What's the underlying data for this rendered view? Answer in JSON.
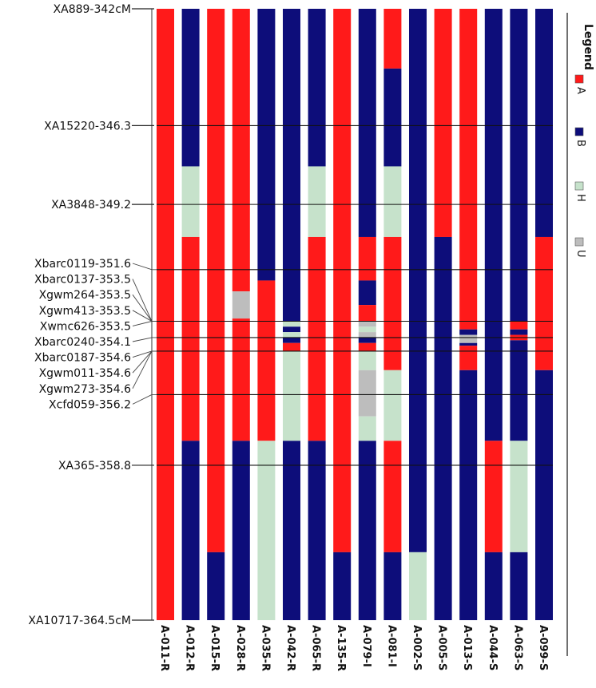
{
  "markers": [
    {
      "label": "XA889-342cM",
      "cM": 342.0,
      "ref": true
    },
    {
      "label": "XA15220-346.3",
      "cM": 346.3,
      "ref": true
    },
    {
      "label": "XA3848-349.2",
      "cM": 349.2,
      "ref": true
    },
    {
      "label": "Xbarc0119-351.6",
      "cM": 351.6
    },
    {
      "label": "Xbarc0137-353.5",
      "cM": 353.5
    },
    {
      "label": "Xgwm264-353.5",
      "cM": 353.5
    },
    {
      "label": "Xgwm413-353.5",
      "cM": 353.5
    },
    {
      "label": "Xwmc626-353.5",
      "cM": 353.5
    },
    {
      "label": "Xbarc0240-354.1",
      "cM": 354.1
    },
    {
      "label": "Xbarc0187-354.6",
      "cM": 354.6
    },
    {
      "label": "Xgwm011-354.6",
      "cM": 354.6
    },
    {
      "label": "Xgwm273-354.6",
      "cM": 354.6
    },
    {
      "label": "Xcfd059-356.2",
      "cM": 356.2
    },
    {
      "label": "XA365-358.8",
      "cM": 358.8,
      "ref": true
    },
    {
      "label": "XA10717-364.5cM",
      "cM": 364.5,
      "ref": true
    }
  ],
  "axis": {
    "min_cM": 342.0,
    "max_cM": 364.5
  },
  "legend": {
    "title": "Legend",
    "items": [
      {
        "code": "A",
        "label": "A",
        "color": "#ff1a1a"
      },
      {
        "code": "B",
        "label": "B",
        "color": "#0d0d7a"
      },
      {
        "code": "H",
        "label": "H",
        "color": "#c6e2cb"
      },
      {
        "code": "U",
        "label": "U",
        "color": "#bdbdbd"
      }
    ]
  },
  "colors": {
    "A": "#ff1a1a",
    "B": "#0d0d7a",
    "H": "#c6e2cb",
    "U": "#bdbdbd",
    "line": "#111111"
  },
  "lines": [
    {
      "name": "A-011-R",
      "segments": [
        [
          342.0,
          364.5,
          "A"
        ]
      ]
    },
    {
      "name": "A-012-R",
      "segments": [
        [
          342.0,
          347.8,
          "B"
        ],
        [
          347.8,
          350.4,
          "H"
        ],
        [
          350.4,
          357.9,
          "A"
        ],
        [
          357.9,
          364.5,
          "B"
        ]
      ]
    },
    {
      "name": "A-015-R",
      "segments": [
        [
          342.0,
          362.0,
          "A"
        ],
        [
          362.0,
          364.5,
          "B"
        ]
      ]
    },
    {
      "name": "A-028-R",
      "segments": [
        [
          342.0,
          352.4,
          "A"
        ],
        [
          352.4,
          353.4,
          "U"
        ],
        [
          353.4,
          357.9,
          "A"
        ],
        [
          357.9,
          364.5,
          "B"
        ]
      ]
    },
    {
      "name": "A-035-R",
      "segments": [
        [
          342.0,
          352.0,
          "B"
        ],
        [
          352.0,
          357.9,
          "A"
        ],
        [
          357.9,
          364.5,
          "H"
        ]
      ]
    },
    {
      "name": "A-042-R",
      "segments": [
        [
          342.0,
          353.5,
          "B"
        ],
        [
          353.5,
          353.7,
          "H"
        ],
        [
          353.7,
          353.9,
          "B"
        ],
        [
          353.9,
          354.1,
          "H"
        ],
        [
          354.1,
          354.3,
          "B"
        ],
        [
          354.3,
          354.6,
          "A"
        ],
        [
          354.6,
          357.9,
          "H"
        ],
        [
          357.9,
          364.5,
          "B"
        ]
      ]
    },
    {
      "name": "A-065-R",
      "segments": [
        [
          342.0,
          347.8,
          "B"
        ],
        [
          347.8,
          350.4,
          "H"
        ],
        [
          350.4,
          357.9,
          "A"
        ],
        [
          357.9,
          364.5,
          "B"
        ]
      ]
    },
    {
      "name": "A-135-R",
      "segments": [
        [
          342.0,
          362.0,
          "A"
        ],
        [
          362.0,
          364.5,
          "B"
        ]
      ]
    },
    {
      "name": "A-079-I",
      "segments": [
        [
          342.0,
          350.4,
          "B"
        ],
        [
          350.4,
          352.0,
          "A"
        ],
        [
          352.0,
          352.9,
          "B"
        ],
        [
          352.9,
          353.5,
          "A"
        ],
        [
          353.5,
          353.7,
          "U"
        ],
        [
          353.7,
          353.9,
          "H"
        ],
        [
          353.9,
          354.1,
          "U"
        ],
        [
          354.1,
          354.3,
          "B"
        ],
        [
          354.3,
          354.6,
          "A"
        ],
        [
          354.6,
          355.3,
          "H"
        ],
        [
          355.3,
          357.0,
          "U"
        ],
        [
          357.0,
          357.9,
          "H"
        ],
        [
          357.9,
          364.5,
          "B"
        ]
      ]
    },
    {
      "name": "A-081-I",
      "segments": [
        [
          342.0,
          344.2,
          "A"
        ],
        [
          344.2,
          347.8,
          "B"
        ],
        [
          347.8,
          350.4,
          "H"
        ],
        [
          350.4,
          355.3,
          "A"
        ],
        [
          355.3,
          357.9,
          "H"
        ],
        [
          357.9,
          362.0,
          "A"
        ],
        [
          362.0,
          364.5,
          "B"
        ]
      ]
    },
    {
      "name": "A-002-S",
      "segments": [
        [
          342.0,
          362.0,
          "B"
        ],
        [
          362.0,
          364.5,
          "H"
        ]
      ]
    },
    {
      "name": "A-005-S",
      "segments": [
        [
          342.0,
          350.4,
          "A"
        ],
        [
          350.4,
          364.5,
          "B"
        ]
      ]
    },
    {
      "name": "A-013-S",
      "segments": [
        [
          342.0,
          353.8,
          "A"
        ],
        [
          353.8,
          354.0,
          "B"
        ],
        [
          354.0,
          354.3,
          "U"
        ],
        [
          354.3,
          354.4,
          "B"
        ],
        [
          354.4,
          355.3,
          "A"
        ],
        [
          355.3,
          364.5,
          "B"
        ]
      ]
    },
    {
      "name": "A-044-S",
      "segments": [
        [
          342.0,
          357.9,
          "B"
        ],
        [
          357.9,
          362.0,
          "A"
        ],
        [
          362.0,
          364.5,
          "B"
        ]
      ]
    },
    {
      "name": "A-063-S",
      "segments": [
        [
          342.0,
          353.5,
          "B"
        ],
        [
          353.5,
          353.8,
          "A"
        ],
        [
          353.8,
          354.0,
          "B"
        ],
        [
          354.0,
          354.2,
          "A"
        ],
        [
          354.2,
          357.9,
          "B"
        ],
        [
          357.9,
          362.0,
          "H"
        ],
        [
          362.0,
          364.5,
          "B"
        ]
      ]
    },
    {
      "name": "A-099-S",
      "segments": [
        [
          342.0,
          350.4,
          "B"
        ],
        [
          350.4,
          355.3,
          "A"
        ],
        [
          355.3,
          364.5,
          "B"
        ]
      ]
    }
  ]
}
